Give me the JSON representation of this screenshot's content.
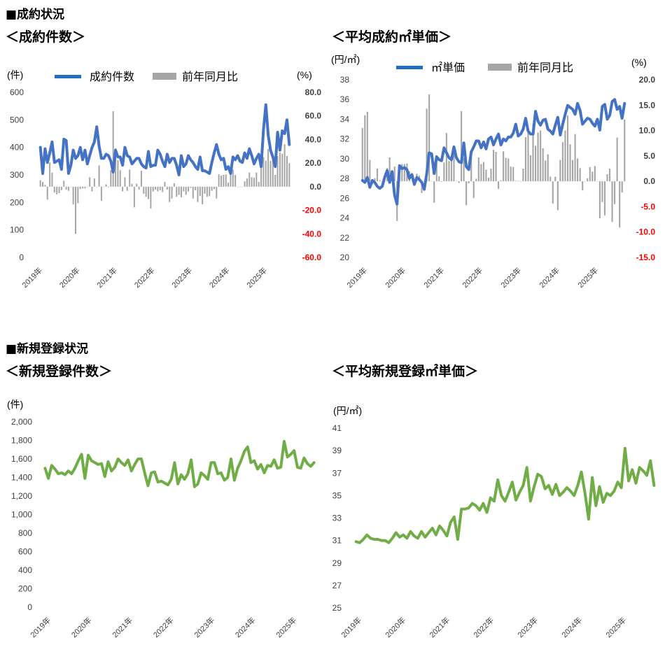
{
  "sections": {
    "contract_status": "■成約状況",
    "new_listing_status": "■新規登録状況"
  },
  "chart_titles": {
    "contract_count": "＜成約件数＞",
    "contract_unit_price": "＜平均成約㎡単価＞",
    "new_listing_count": "＜新規登録件数＞",
    "new_listing_unit_price": "＜平均新規登録㎡単価＞"
  },
  "colors": {
    "contract_line": "#4472C4",
    "contract_legend_line": "#1F6FC5",
    "new_listing_line": "#70AD47",
    "yoy_bar": "#A6A6A6",
    "negative_tick": "#FF0000",
    "axis_text": "#404040"
  },
  "chart_data": [
    {
      "id": "contract_count",
      "type": "bar+line",
      "y_unit_label": "(件)",
      "y2_unit_label": "(%)",
      "ylim": [
        0,
        600
      ],
      "y_ticks": [
        "0",
        "100",
        "200",
        "300",
        "400",
        "500",
        "600"
      ],
      "y2lim": [
        -60,
        80
      ],
      "y2_ticks": [
        "-60.0",
        "-40.0",
        "-20.0",
        "0.0",
        "20.0",
        "40.0",
        "60.0",
        "80.0"
      ],
      "x_labels": [
        "2019年",
        "2020年",
        "2021年",
        "2022年",
        "2023年",
        "2024年",
        "2025年"
      ],
      "legend": [
        "成約件数",
        "前年同月比"
      ],
      "series": [
        {
          "name": "成約件数",
          "kind": "line",
          "axis": "left",
          "values": [
            400,
            305,
            395,
            345,
            380,
            420,
            345,
            350,
            355,
            320,
            430,
            425,
            305,
            335,
            390,
            360,
            370,
            400,
            355,
            390,
            340,
            370,
            400,
            420,
            475,
            405,
            360,
            360,
            375,
            370,
            350,
            310,
            390,
            365,
            365,
            335,
            400,
            370,
            365,
            340,
            350,
            360,
            360,
            340,
            330,
            325,
            385,
            330,
            335,
            335,
            390,
            375,
            350,
            330,
            375,
            345,
            360,
            360,
            335,
            300,
            370,
            330,
            340,
            370,
            355,
            345,
            330,
            320,
            365,
            315,
            315,
            310,
            305,
            345,
            380,
            410,
            375,
            355,
            360,
            320,
            330,
            305,
            365,
            355,
            370,
            350,
            345,
            380,
            360,
            395,
            370,
            340,
            360,
            375,
            330,
            465,
            555,
            445,
            390,
            365,
            330,
            455,
            390,
            460,
            450,
            500,
            410
          ]
        },
        {
          "name": "前年同月比",
          "kind": "bar",
          "axis": "right",
          "values": [
            5.5,
            4.0,
            1.5,
            -11.0,
            20.5,
            12.0,
            -5.0,
            -6.5,
            -5.5,
            -3.0,
            5.0,
            -2.5,
            -3.5,
            0,
            -15.0,
            -40.0,
            -14.0,
            -2.0,
            -1.5,
            -1.5,
            0,
            8.0,
            -4.0,
            7.0,
            0,
            18.0,
            -12.0,
            0,
            2.0,
            -0.5,
            14.0,
            64.0,
            32.5,
            22.5,
            14.0,
            -4.0,
            8.0,
            -3.5,
            14.5,
            2.5,
            -17.5,
            2.5,
            -2.5,
            13.5,
            -6.0,
            -8.5,
            -10.5,
            -18.5,
            -4.0,
            -2.5,
            -4.0,
            -3.0,
            -4.5,
            4.0,
            -2.5,
            -13.0,
            -10.0,
            3.0,
            -8.5,
            -7.0,
            -9.0,
            -4.0,
            -7.0,
            -4.0,
            -1.0,
            -10.0,
            -3.0,
            -13.0,
            -8.0,
            -15.0,
            -6.0,
            -8.5,
            -8.0,
            -3.5,
            -2.0,
            -10.0,
            10.5,
            9.5,
            10.0,
            10.5,
            3.5,
            15.0,
            14.5,
            10.0,
            0,
            0,
            0,
            4.5,
            7.0,
            12.0,
            8.0,
            7.5,
            12.0,
            4.0,
            19.0,
            25.0,
            22.0,
            32.0,
            22.0,
            23.0,
            10.0,
            26.0,
            29.0,
            28.0,
            36.0,
            26.0,
            20.0
          ]
        }
      ]
    },
    {
      "id": "contract_unit_price",
      "type": "bar+line",
      "y_unit_label": "(円/㎡)",
      "y2_unit_label": "(%)",
      "ylim": [
        20,
        38
      ],
      "y_ticks": [
        "20",
        "22",
        "24",
        "26",
        "28",
        "30",
        "32",
        "34",
        "36",
        "38"
      ],
      "y2lim": [
        -15,
        20
      ],
      "y2_ticks": [
        "-15.0",
        "-10.0",
        "-5.0",
        "0.0",
        "5.0",
        "10.0",
        "15.0",
        "20.0"
      ],
      "x_labels": [
        "2019年",
        "2020年",
        "2021年",
        "2022年",
        "2023年",
        "2024年",
        "2025年"
      ],
      "legend": [
        "㎡単価",
        "前年同月比"
      ],
      "series": [
        {
          "name": "㎡単価",
          "kind": "line",
          "axis": "left",
          "values": [
            27.8,
            27.6,
            28.1,
            27.1,
            27.8,
            27.6,
            27.2,
            27.0,
            27.2,
            28.1,
            28.8,
            27.6,
            28.7,
            26.3,
            25.4,
            29.3,
            29.0,
            29.1,
            28.9,
            28.0,
            28.4,
            27.4,
            28.1,
            27.9,
            27.6,
            26.9,
            28.5,
            30.6,
            30.5,
            28.5,
            30.2,
            29.9,
            29.8,
            31.1,
            30.6,
            30.1,
            29.9,
            31.2,
            30.1,
            29.7,
            29.6,
            31.6,
            29.2,
            28.9,
            30.7,
            31.2,
            31.8,
            31.8,
            31.1,
            31.7,
            31.0,
            32.0,
            32.2,
            31.4,
            32.0,
            32.5,
            31.4,
            32.0,
            31.8,
            32.2,
            32.2,
            32.6,
            33.5,
            32.3,
            32.5,
            33.0,
            34.1,
            32.8,
            32.5,
            32.5,
            34.8,
            33.8,
            33.4,
            33.9,
            34.0,
            33.0,
            32.8,
            32.5,
            33.4,
            34.2,
            32.4,
            33.5,
            34.5,
            35.4,
            35.2,
            35.0,
            34.5,
            35.6,
            34.9,
            33.5,
            33.8,
            34.1,
            34.0,
            33.6,
            33.3,
            34.0,
            32.9,
            35.3,
            35.5,
            34.0,
            34.4,
            35.8,
            36.0,
            35.0,
            35.3,
            34.1,
            35.6
          ]
        },
        {
          "name": "前年同月比",
          "kind": "bar",
          "axis": "right",
          "values": [
            10.5,
            13.0,
            13.7,
            4.2,
            -0.6,
            0.6,
            2.5,
            0.2,
            -0.1,
            0,
            2.6,
            4.7,
            0.6,
            2.9,
            -7.8,
            0.8,
            3.4,
            3.4,
            3.5,
            2.0,
            0.1,
            0,
            1.5,
            1.1,
            -2.3,
            0,
            14.3,
            17.1,
            0,
            -4.2,
            4.8,
            1.0,
            -0.1,
            3.7,
            9.5,
            4.0,
            5.1,
            6.1,
            0.1,
            -0.3,
            13.8,
            4.6,
            -4.7,
            -0.4,
            5.3,
            -3.3,
            0.5,
            4.7,
            3.4,
            3.8,
            2.3,
            0.7,
            2.5,
            6.2,
            5.8,
            -1.5,
            0.2,
            5.9,
            4.6,
            4.5,
            2.9,
            2.8,
            0.1,
            0.1,
            0,
            2.5,
            8.7,
            10.1,
            5.1,
            11.3,
            7.0,
            9.6,
            10.0,
            6.5,
            4.1,
            5.3,
            0.9,
            -4.4,
            0.9,
            -5.7,
            4.2,
            7.7,
            10.0,
            13.0,
            7.3,
            4.2,
            9.3,
            4.5,
            2.6,
            -1.8,
            0,
            0.6,
            2.8,
            1.9,
            3.0,
            0,
            -7.3,
            -4.1,
            -6.7,
            1.4,
            2.5,
            -8.0,
            -4.5,
            8.6,
            -9.1,
            -2.2,
            12.2
          ]
        }
      ]
    },
    {
      "id": "new_listing_count",
      "type": "line",
      "y_unit_label": "(件)",
      "ylim": [
        0,
        2000
      ],
      "y_ticks": [
        "0",
        "200",
        "400",
        "600",
        "800",
        "1,000",
        "1,200",
        "1,400",
        "1,600",
        "1,800",
        "2,000"
      ],
      "x_labels": [
        "2019年",
        "2020年",
        "2021年",
        "2022年",
        "2023年",
        "2024年",
        "2025年"
      ],
      "series": [
        {
          "name": "新規登録件数",
          "kind": "line",
          "values": [
            1500,
            1390,
            1530,
            1490,
            1440,
            1450,
            1430,
            1470,
            1440,
            1500,
            1580,
            1650,
            1390,
            1640,
            1580,
            1560,
            1540,
            1550,
            1410,
            1570,
            1470,
            1510,
            1600,
            1560,
            1530,
            1590,
            1470,
            1540,
            1600,
            1600,
            1450,
            1310,
            1450,
            1460,
            1350,
            1360,
            1340,
            1320,
            1380,
            1560,
            1330,
            1430,
            1380,
            1440,
            1590,
            1300,
            1330,
            1450,
            1420,
            1380,
            1560,
            1560,
            1440,
            1450,
            1370,
            1400,
            1600,
            1370,
            1500,
            1580,
            1680,
            1730,
            1560,
            1580,
            1490,
            1540,
            1450,
            1530,
            1520,
            1590,
            1500,
            1510,
            1790,
            1620,
            1650,
            1690,
            1510,
            1500,
            1610,
            1550,
            1520,
            1560
          ]
        }
      ]
    },
    {
      "id": "new_listing_unit_price",
      "type": "line",
      "y_unit_label": "(円/㎡)",
      "ylim": [
        25,
        41
      ],
      "y_ticks": [
        "25",
        "27",
        "29",
        "31",
        "33",
        "35",
        "37",
        "39",
        "41"
      ],
      "x_labels": [
        "2019年",
        "2020年",
        "2021年",
        "2022年",
        "2023年",
        "2024年",
        "2025年"
      ],
      "series": [
        {
          "name": "平均新規登録㎡単価",
          "kind": "line",
          "values": [
            30.9,
            30.8,
            31.1,
            31.5,
            31.2,
            31.1,
            31.1,
            31.0,
            31.0,
            30.8,
            31.2,
            31.7,
            31.3,
            31.5,
            31.2,
            31.8,
            31.4,
            31.2,
            31.8,
            31.3,
            31.7,
            32.1,
            31.5,
            32.3,
            31.9,
            31.4,
            32.6,
            33.1,
            31.1,
            33.8,
            33.8,
            33.9,
            34.3,
            34.1,
            33.7,
            34.3,
            33.5,
            34.8,
            34.5,
            36.4,
            35.0,
            34.5,
            35.3,
            36.2,
            34.6,
            35.3,
            35.9,
            37.5,
            34.5,
            35.8,
            36.9,
            36.7,
            35.6,
            35.9,
            35.1,
            36.0,
            35.0,
            35.3,
            35.7,
            35.4,
            35.0,
            35.9,
            37.1,
            35.2,
            32.9,
            36.6,
            34.1,
            35.8,
            34.4,
            35.2,
            35.0,
            35.4,
            36.2,
            35.7,
            39.2,
            36.3,
            37.3,
            36.1,
            37.5,
            37.2,
            36.8,
            38.1,
            35.9
          ]
        }
      ]
    }
  ]
}
